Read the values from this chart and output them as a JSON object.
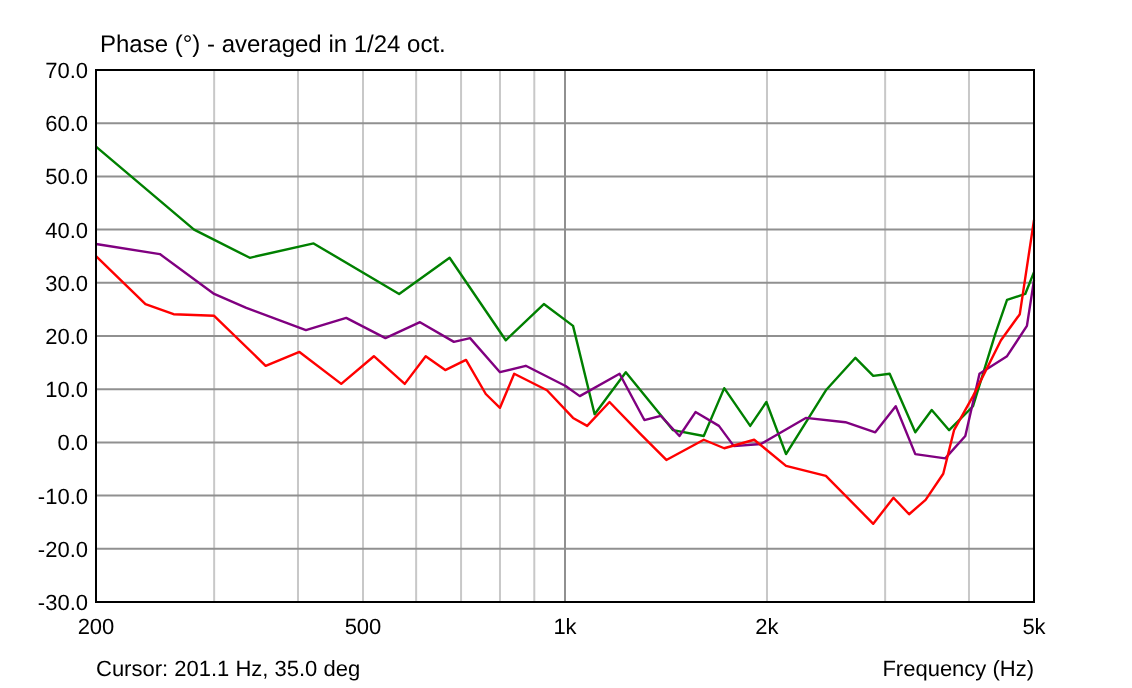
{
  "chart_data": {
    "type": "line",
    "title": "Phase (°) - averaged in 1/24 oct.",
    "xlabel": "Frequency (Hz)",
    "annotations": [
      "Cursor: 201.1 Hz, 35.0 deg"
    ],
    "log": "x",
    "grid": true,
    "line_style": "solid",
    "xlim": [
      200,
      5000
    ],
    "ylim": [
      -30,
      70
    ],
    "xticks": [
      200,
      {
        "value": 300,
        "label": null
      },
      {
        "value": 400,
        "label": null
      },
      500,
      {
        "value": 600,
        "label": null
      },
      {
        "value": 700,
        "label": null
      },
      {
        "value": 800,
        "label": null
      },
      {
        "value": 900,
        "label": null
      },
      {
        "value": 1000,
        "label": "1k"
      },
      {
        "value": 2000,
        "label": "2k"
      },
      {
        "value": 3000,
        "label": null
      },
      {
        "value": 4000,
        "label": null
      },
      {
        "value": 5000,
        "label": "5k"
      }
    ],
    "yticks": [
      {
        "value": -30,
        "label": "-30.0"
      },
      {
        "value": -20,
        "label": "-20.0"
      },
      {
        "value": -10,
        "label": "-10.0"
      },
      {
        "value": 0,
        "label": "0.0"
      },
      {
        "value": 10,
        "label": "10.0"
      },
      {
        "value": 20,
        "label": "20.0"
      },
      {
        "value": 30,
        "label": "30.0"
      },
      {
        "value": 40,
        "label": "40.0"
      },
      {
        "value": 50,
        "label": "50.0"
      },
      {
        "value": 60,
        "label": "60.0"
      },
      {
        "value": 70,
        "label": "70.0"
      }
    ],
    "series": [
      {
        "color": "#008000",
        "x": [
          200,
          280,
          339,
          422,
          566,
          673,
          816,
          930,
          1028,
          1107,
          1232,
          1449,
          1610,
          1727,
          1888,
          1996,
          2135,
          2448,
          2709,
          2880,
          3047,
          3327,
          3520,
          3737,
          4056,
          4378,
          4558,
          4852,
          5000
        ],
        "values": [
          55.6,
          40,
          34.7,
          37.4,
          27.9,
          34.7,
          19.2,
          26,
          21.9,
          5.3,
          13.2,
          2.3,
          1.2,
          10.2,
          3.1,
          7.6,
          -2.2,
          9.8,
          15.9,
          12.5,
          12.9,
          1.9,
          6.1,
          2.3,
          6.8,
          20.4,
          26.8,
          27.9,
          32
        ]
      },
      {
        "color": "#800080",
        "x": [
          200,
          249,
          300,
          335,
          411,
          472,
          540,
          608,
          683,
          722,
          800,
          874,
          1002,
          1052,
          1206,
          1313,
          1389,
          1481,
          1565,
          1696,
          1785,
          1959,
          2285,
          2618,
          2900,
          3111,
          3327,
          3687,
          3950,
          4147,
          4558,
          4880,
          5000
        ],
        "values": [
          37.3,
          35.4,
          27.9,
          25.3,
          21.1,
          23.4,
          19.6,
          22.6,
          18.9,
          19.6,
          13.2,
          14.4,
          10.6,
          8.7,
          12.9,
          4.2,
          5,
          1.2,
          5.7,
          3.1,
          -0.7,
          -0.3,
          4.6,
          3.8,
          1.9,
          6.8,
          -2.2,
          -3,
          1.2,
          12.9,
          16.2,
          21.9,
          30.5
        ]
      },
      {
        "color": "#ff0000",
        "x": [
          200,
          237,
          261,
          300,
          358,
          402,
          464,
          519,
          577,
          620,
          663,
          712,
          762,
          800,
          840,
          940,
          1028,
          1079,
          1165,
          1295,
          1416,
          1610,
          1727,
          1914,
          2135,
          2448,
          2880,
          3087,
          3257,
          3447,
          3662,
          3800,
          4056,
          4464,
          4762,
          5000
        ],
        "values": [
          35,
          26,
          24.1,
          23.8,
          14.4,
          17,
          11,
          16.2,
          11,
          16.2,
          13.6,
          15.5,
          9.1,
          6.5,
          12.9,
          9.8,
          4.6,
          3.1,
          7.6,
          1.6,
          -3.3,
          0.5,
          -1.1,
          0.5,
          -4.4,
          -6.3,
          -15.3,
          -10.4,
          -13.5,
          -10.8,
          -5.9,
          2.3,
          8.7,
          19.2,
          24.1,
          41.8
        ]
      }
    ]
  }
}
